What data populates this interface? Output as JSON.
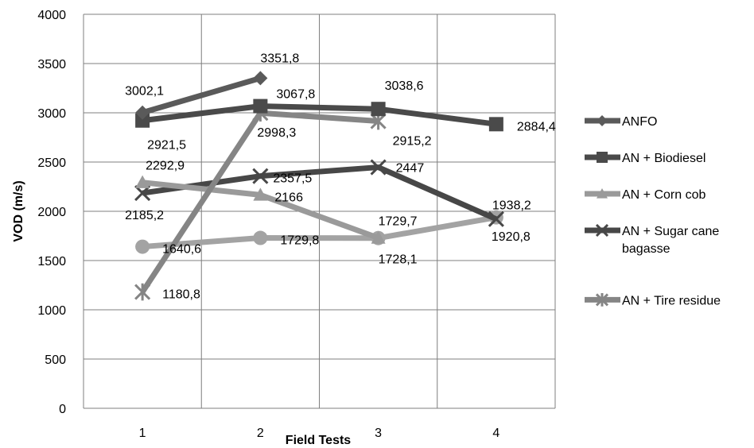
{
  "chart_data": {
    "type": "line",
    "title": "",
    "xlabel": "Field Tests",
    "ylabel": "VOD (m/s)",
    "categories": [
      "1",
      "2",
      "3",
      "4"
    ],
    "ylim": [
      0,
      4000
    ],
    "yticks": [
      0,
      500,
      1000,
      1500,
      2000,
      2500,
      3000,
      3500,
      4000
    ],
    "grid": true,
    "legend": "right",
    "series": [
      {
        "name": "ANFO",
        "marker": "diamond",
        "color": "#5a5a5a",
        "values": [
          3002.1,
          3351.8,
          null,
          null
        ],
        "labels": [
          "3002,1",
          "3351,8",
          "",
          ""
        ]
      },
      {
        "name": "AN + Biodiesel",
        "marker": "square",
        "color": "#4a4a4a",
        "values": [
          2921.5,
          3067.8,
          3038.6,
          2884.4
        ],
        "labels": [
          "2921,5",
          "3067,8",
          "3038,6",
          "2884,4"
        ]
      },
      {
        "name": "AN + Corn cob",
        "marker": "triangle",
        "color": "#9a9a9a",
        "values": [
          2292.9,
          2166,
          1729.7,
          null
        ],
        "labels": [
          "2292,9",
          "2166",
          "1729,7",
          ""
        ]
      },
      {
        "name": "AN + Sugar cane bagasse",
        "marker": "x",
        "color": "#474747",
        "values": [
          2185.2,
          2357.5,
          2447,
          1920.8
        ],
        "labels": [
          "2185,2",
          "2357,5",
          "2447",
          "1920,8"
        ]
      },
      {
        "name": "AN + Tire residue",
        "marker": "asterisk",
        "color": "#858585",
        "values": [
          1180.8,
          2998.3,
          2915.2,
          null
        ],
        "labels": [
          "1180,8",
          "2998,3",
          "2915,2",
          ""
        ]
      },
      {
        "name": "",
        "marker": "circle",
        "color": "#a3a3a3",
        "legend": false,
        "values": [
          1640.6,
          1729.8,
          1728.1,
          1938.2
        ],
        "labels": [
          "1640,6",
          "1729,8",
          "1728,1",
          "1938,2"
        ]
      }
    ]
  }
}
